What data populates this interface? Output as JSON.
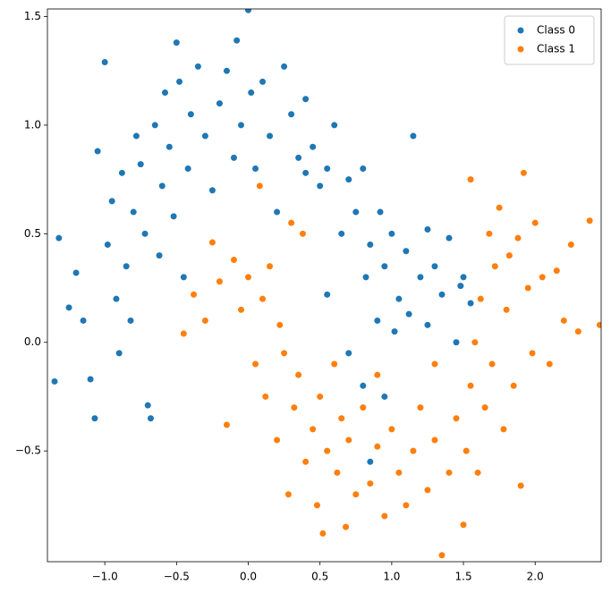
{
  "chart_data": {
    "type": "scatter",
    "xlim": [
      -1.4,
      2.46
    ],
    "ylim": [
      -1.01,
      1.535
    ],
    "xticks": [
      {
        "value": -1,
        "label": "−1.0"
      },
      {
        "value": -0.5,
        "label": "−0.5"
      },
      {
        "value": 0,
        "label": "0.0"
      },
      0.5,
      {
        "value": 1,
        "label": "1.0"
      },
      1.5,
      {
        "value": 2,
        "label": "2.0"
      }
    ],
    "yticks": [
      {
        "value": -0.5,
        "label": "−0.5"
      },
      {
        "value": 0,
        "label": "0.0"
      },
      0.5,
      {
        "value": 1,
        "label": "1.0"
      },
      1.5
    ],
    "legend": "upper right",
    "series": [
      {
        "name": "Class 0",
        "color": "#1f77b4",
        "x": [
          -1.32,
          -1.35,
          -1.25,
          -1.2,
          -1.15,
          -1.1,
          -1.07,
          -1.05,
          -1.0,
          -0.98,
          -0.95,
          -0.92,
          -0.9,
          -0.88,
          -0.85,
          -0.82,
          -0.8,
          -0.78,
          -0.75,
          -0.72,
          -0.7,
          -0.68,
          -0.65,
          -0.62,
          -0.6,
          -0.58,
          -0.55,
          -0.52,
          -0.5,
          -0.48,
          -0.45,
          -0.42,
          -0.4,
          -0.35,
          -0.3,
          -0.25,
          -0.2,
          -0.15,
          -0.1,
          -0.08,
          -0.05,
          0.0,
          0.02,
          0.05,
          0.1,
          0.15,
          0.2,
          0.25,
          0.3,
          0.35,
          0.4,
          0.45,
          0.5,
          0.55,
          0.6,
          0.65,
          0.7,
          0.75,
          0.8,
          0.82,
          0.85,
          0.9,
          0.92,
          0.95,
          1.0,
          1.02,
          1.05,
          1.1,
          1.15,
          1.2,
          1.25,
          1.3,
          1.35,
          1.4,
          1.45,
          1.5,
          1.55,
          0.85,
          0.8,
          0.7,
          0.95,
          0.55,
          0.4,
          1.12,
          1.25,
          1.48
        ],
        "y": [
          0.48,
          -0.18,
          0.16,
          0.32,
          0.1,
          -0.17,
          -0.35,
          0.88,
          1.29,
          0.45,
          0.65,
          0.2,
          -0.05,
          0.78,
          0.35,
          0.1,
          0.6,
          0.95,
          0.82,
          0.5,
          -0.29,
          -0.35,
          1.0,
          0.4,
          0.72,
          1.15,
          0.9,
          0.58,
          1.38,
          1.2,
          0.3,
          0.8,
          1.05,
          1.27,
          0.95,
          0.7,
          1.1,
          1.25,
          0.85,
          1.39,
          1.0,
          1.53,
          1.15,
          0.8,
          1.2,
          0.95,
          0.6,
          1.27,
          1.05,
          0.85,
          1.12,
          0.9,
          0.72,
          0.8,
          1.0,
          0.5,
          0.75,
          0.6,
          0.8,
          0.3,
          0.45,
          0.1,
          0.6,
          0.35,
          0.5,
          0.05,
          0.2,
          0.42,
          0.95,
          0.3,
          0.08,
          0.35,
          0.22,
          0.48,
          0.0,
          0.3,
          0.18,
          -0.55,
          -0.2,
          -0.05,
          -0.25,
          0.22,
          0.78,
          0.13,
          0.52,
          0.26
        ]
      },
      {
        "name": "Class 1",
        "color": "#ff7f0e",
        "x": [
          -0.45,
          -0.38,
          -0.3,
          -0.25,
          -0.2,
          -0.15,
          -0.1,
          -0.05,
          0.0,
          0.05,
          0.08,
          0.1,
          0.12,
          0.15,
          0.2,
          0.22,
          0.25,
          0.28,
          0.3,
          0.32,
          0.35,
          0.38,
          0.4,
          0.45,
          0.48,
          0.5,
          0.52,
          0.55,
          0.6,
          0.62,
          0.65,
          0.68,
          0.7,
          0.75,
          0.8,
          0.85,
          0.9,
          0.95,
          1.0,
          1.05,
          1.1,
          1.15,
          1.2,
          1.25,
          1.3,
          1.35,
          1.4,
          1.45,
          1.5,
          1.52,
          1.55,
          1.58,
          1.6,
          1.62,
          1.65,
          1.68,
          1.7,
          1.72,
          1.75,
          1.78,
          1.8,
          1.82,
          1.85,
          1.88,
          1.9,
          1.92,
          1.95,
          1.98,
          2.0,
          2.05,
          2.1,
          2.15,
          2.2,
          2.25,
          2.3,
          2.38,
          2.45,
          1.55,
          1.3,
          0.9
        ],
        "y": [
          0.04,
          0.22,
          0.1,
          0.46,
          0.28,
          -0.38,
          0.38,
          0.15,
          0.3,
          -0.1,
          0.72,
          0.2,
          -0.25,
          0.35,
          -0.45,
          0.08,
          -0.05,
          -0.7,
          0.55,
          -0.3,
          -0.15,
          0.5,
          -0.55,
          -0.4,
          -0.75,
          -0.25,
          -0.88,
          -0.5,
          -0.1,
          -0.6,
          -0.35,
          -0.85,
          -0.45,
          -0.7,
          -0.3,
          -0.65,
          -0.48,
          -0.8,
          -0.4,
          -0.6,
          -0.75,
          -0.5,
          -0.3,
          -0.68,
          -0.45,
          -0.98,
          -0.6,
          -0.35,
          -0.84,
          -0.5,
          -0.2,
          0.0,
          -0.6,
          0.2,
          -0.3,
          0.5,
          -0.1,
          0.35,
          0.62,
          -0.4,
          0.15,
          0.4,
          -0.2,
          0.48,
          -0.66,
          0.78,
          0.25,
          -0.05,
          0.55,
          0.3,
          -0.1,
          0.33,
          0.1,
          0.45,
          0.05,
          0.56,
          0.08,
          0.75,
          -0.1,
          -0.15
        ]
      }
    ]
  }
}
